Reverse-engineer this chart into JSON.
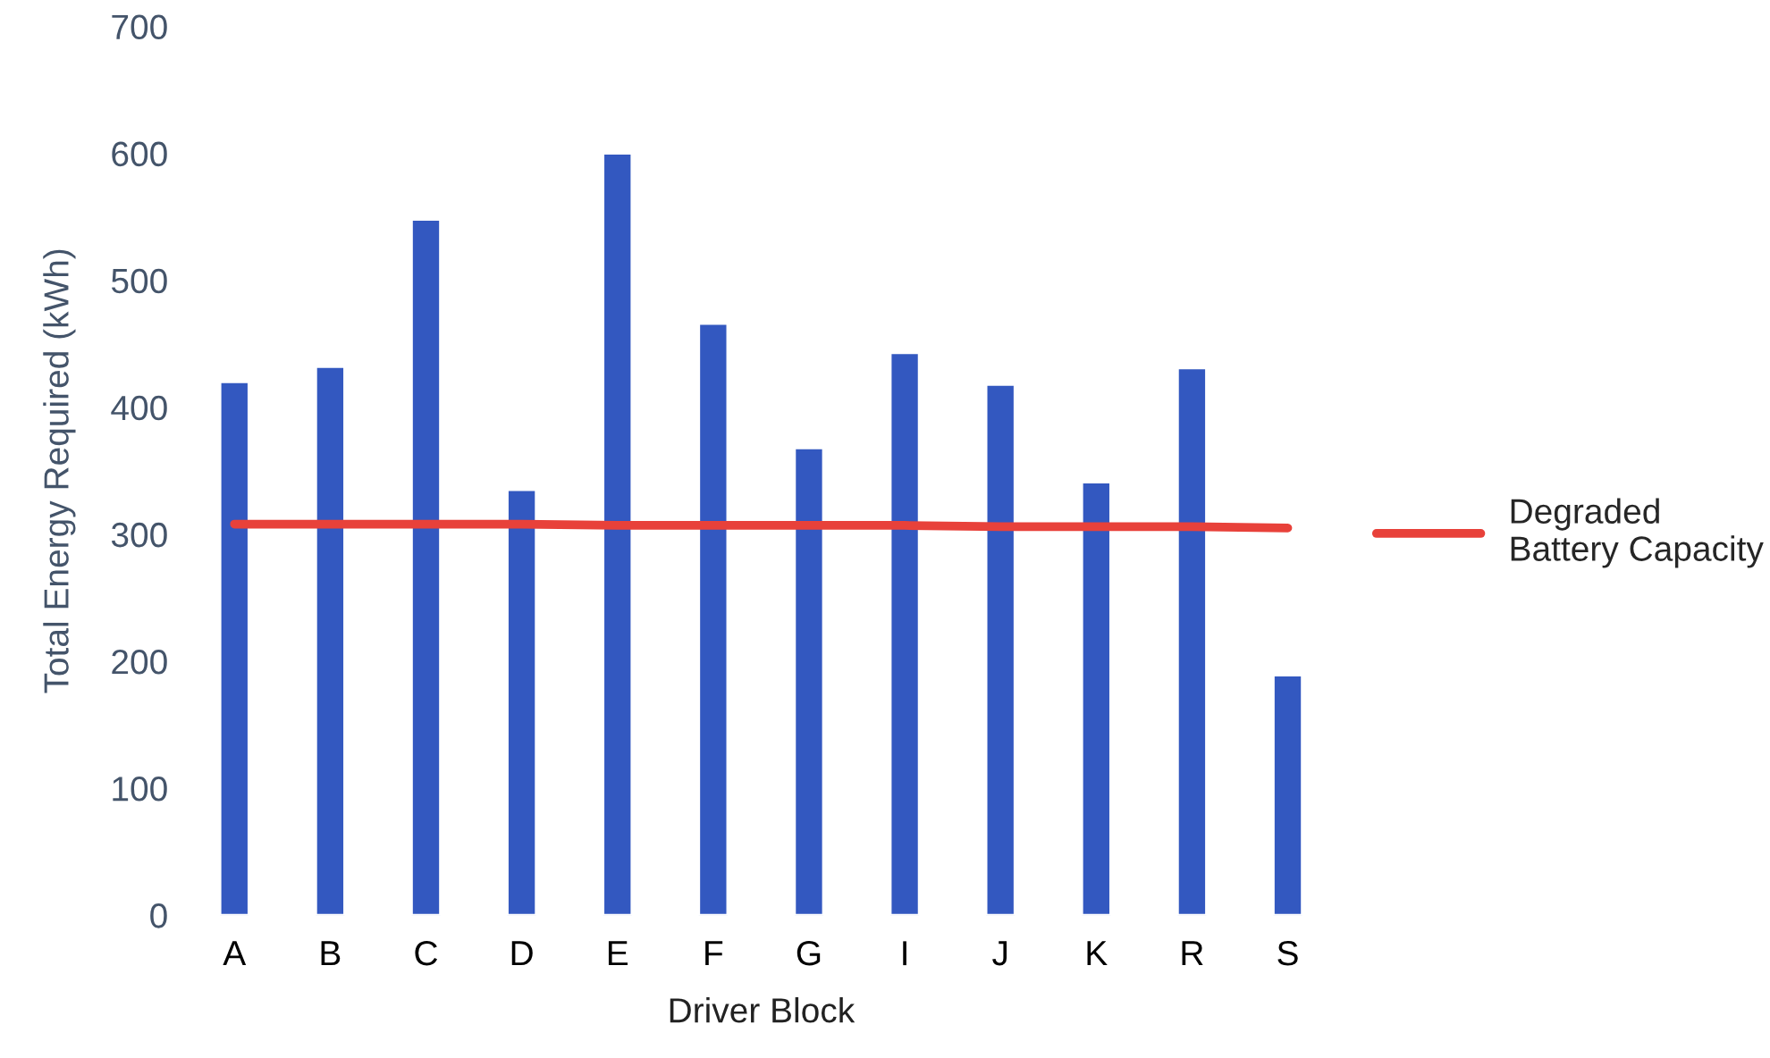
{
  "chart_data": {
    "type": "bar",
    "xlabel": "Driver Block",
    "ylabel": "Total Energy Required (kWh)",
    "categories": [
      "A",
      "B",
      "C",
      "D",
      "E",
      "F",
      "G",
      "I",
      "J",
      "K",
      "R",
      "S"
    ],
    "series": [
      {
        "color": "#3358c0",
        "values": [
          420,
          432,
          548,
          335,
          600,
          466,
          368,
          443,
          418,
          341,
          431,
          189
        ]
      },
      {
        "type": "line",
        "name": "Degraded\nBattery Capacity",
        "color": "#e8413a",
        "values": [
          308,
          308,
          308,
          308,
          307,
          307,
          307,
          307,
          306,
          306,
          306,
          305
        ]
      }
    ],
    "ylim": [
      0,
      700
    ],
    "yticks": [
      0,
      100,
      200,
      300,
      400,
      500,
      600,
      700
    ],
    "grid": false,
    "legend": "right"
  }
}
